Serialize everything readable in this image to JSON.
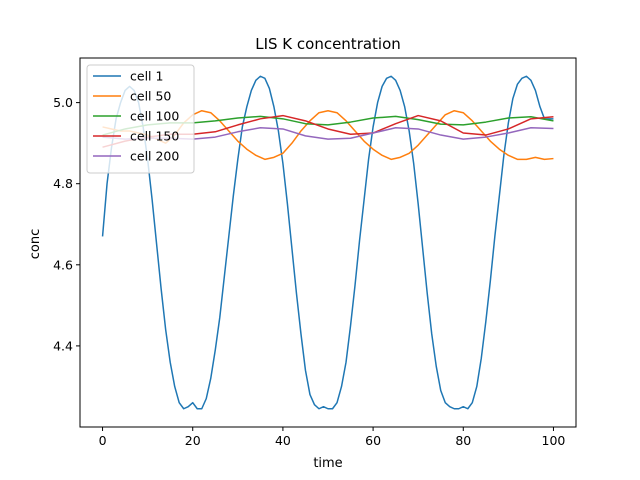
{
  "chart_data": {
    "type": "line",
    "title": "LIS K concentration",
    "xlabel": "time",
    "ylabel": "conc",
    "xlim": [
      -5,
      105
    ],
    "ylim": [
      4.2,
      5.11
    ],
    "x_ticks": [
      0,
      20,
      40,
      60,
      80,
      100
    ],
    "y_ticks": [
      4.4,
      4.6,
      4.8,
      5.0
    ],
    "x_tick_labels": [
      "0",
      "20",
      "40",
      "60",
      "80",
      "100"
    ],
    "y_tick_labels": [
      "4.4",
      "4.6",
      "4.8",
      "5.0"
    ],
    "legend_position": "top-left",
    "grid": false,
    "series": [
      {
        "name": "cell 1",
        "color": "#1f77b4",
        "x": [
          0,
          1,
          2,
          3,
          4,
          5,
          6,
          7,
          8,
          9,
          10,
          11,
          12,
          13,
          14,
          15,
          16,
          17,
          18,
          19,
          20,
          21,
          22,
          23,
          24,
          25,
          26,
          27,
          28,
          29,
          30,
          31,
          32,
          33,
          34,
          35,
          36,
          37,
          38,
          39,
          40,
          41,
          42,
          43,
          44,
          45,
          46,
          47,
          48,
          49,
          50,
          51,
          52,
          53,
          54,
          55,
          56,
          57,
          58,
          59,
          60,
          61,
          62,
          63,
          64,
          65,
          66,
          67,
          68,
          69,
          70,
          71,
          72,
          73,
          74,
          75,
          76,
          77,
          78,
          79,
          80,
          81,
          82,
          83,
          84,
          85,
          86,
          87,
          88,
          89,
          90,
          91,
          92,
          93,
          94,
          95,
          96,
          97,
          98,
          99,
          100
        ],
        "y": [
          4.67,
          4.8,
          4.89,
          4.96,
          5.0,
          5.03,
          5.04,
          5.03,
          5.0,
          4.94,
          4.86,
          4.76,
          4.65,
          4.54,
          4.44,
          4.36,
          4.3,
          4.26,
          4.245,
          4.25,
          4.26,
          4.245,
          4.245,
          4.27,
          4.32,
          4.39,
          4.47,
          4.57,
          4.67,
          4.77,
          4.86,
          4.94,
          4.99,
          5.03,
          5.055,
          5.065,
          5.06,
          5.035,
          4.99,
          4.93,
          4.85,
          4.75,
          4.64,
          4.53,
          4.43,
          4.34,
          4.28,
          4.255,
          4.245,
          4.25,
          4.245,
          4.245,
          4.26,
          4.3,
          4.36,
          4.45,
          4.55,
          4.66,
          4.76,
          4.86,
          4.94,
          5.0,
          5.04,
          5.06,
          5.065,
          5.055,
          5.03,
          4.99,
          4.93,
          4.85,
          4.75,
          4.64,
          4.53,
          4.43,
          4.35,
          4.29,
          4.26,
          4.25,
          4.245,
          4.245,
          4.25,
          4.245,
          4.26,
          4.3,
          4.37,
          4.46,
          4.56,
          4.67,
          4.77,
          4.87,
          4.95,
          5.01,
          5.045,
          5.06,
          5.065,
          5.055,
          5.03,
          4.99,
          4.96,
          4.96,
          4.96
        ]
      },
      {
        "name": "cell 50",
        "color": "#ff7f0e",
        "x": [
          0,
          2,
          4,
          6,
          8,
          10,
          12,
          14,
          16,
          18,
          20,
          22,
          24,
          26,
          28,
          30,
          32,
          34,
          36,
          38,
          40,
          42,
          44,
          46,
          48,
          50,
          52,
          54,
          56,
          58,
          60,
          62,
          64,
          66,
          68,
          70,
          72,
          74,
          76,
          78,
          80,
          82,
          84,
          86,
          88,
          90,
          92,
          94,
          96,
          98,
          100
        ],
        "y": [
          4.94,
          4.935,
          4.93,
          4.93,
          4.925,
          4.92,
          4.91,
          4.9,
          4.92,
          4.95,
          4.97,
          4.98,
          4.975,
          4.955,
          4.93,
          4.905,
          4.885,
          4.87,
          4.86,
          4.865,
          4.875,
          4.9,
          4.93,
          4.955,
          4.975,
          4.98,
          4.975,
          4.955,
          4.93,
          4.905,
          4.885,
          4.87,
          4.86,
          4.865,
          4.875,
          4.895,
          4.92,
          4.945,
          4.97,
          4.98,
          4.975,
          4.955,
          4.93,
          4.905,
          4.885,
          4.87,
          4.86,
          4.86,
          4.865,
          4.86,
          4.862
        ]
      },
      {
        "name": "cell 100",
        "color": "#2ca02c",
        "x": [
          0,
          5,
          10,
          15,
          20,
          25,
          30,
          35,
          40,
          45,
          50,
          55,
          60,
          65,
          70,
          75,
          80,
          85,
          90,
          95,
          100
        ],
        "y": [
          4.92,
          4.935,
          4.945,
          4.95,
          4.95,
          4.955,
          4.962,
          4.966,
          4.96,
          4.948,
          4.945,
          4.952,
          4.962,
          4.966,
          4.958,
          4.947,
          4.945,
          4.952,
          4.962,
          4.965,
          4.955
        ]
      },
      {
        "name": "cell 150",
        "color": "#d62728",
        "x": [
          0,
          5,
          10,
          15,
          20,
          25,
          30,
          35,
          40,
          45,
          50,
          55,
          60,
          65,
          70,
          75,
          80,
          85,
          90,
          95,
          100
        ],
        "y": [
          4.89,
          4.905,
          4.915,
          4.922,
          4.922,
          4.928,
          4.945,
          4.96,
          4.968,
          4.955,
          4.935,
          4.922,
          4.925,
          4.948,
          4.968,
          4.955,
          4.925,
          4.92,
          4.935,
          4.96,
          4.965
        ]
      },
      {
        "name": "cell 200",
        "color": "#9467bd",
        "x": [
          0,
          5,
          10,
          15,
          20,
          25,
          30,
          35,
          40,
          45,
          50,
          55,
          60,
          65,
          70,
          75,
          80,
          85,
          90,
          95,
          100
        ],
        "y": [
          4.915,
          4.91,
          4.912,
          4.912,
          4.91,
          4.915,
          4.928,
          4.938,
          4.935,
          4.918,
          4.91,
          4.912,
          4.925,
          4.938,
          4.935,
          4.92,
          4.91,
          4.915,
          4.925,
          4.938,
          4.936
        ]
      }
    ]
  }
}
